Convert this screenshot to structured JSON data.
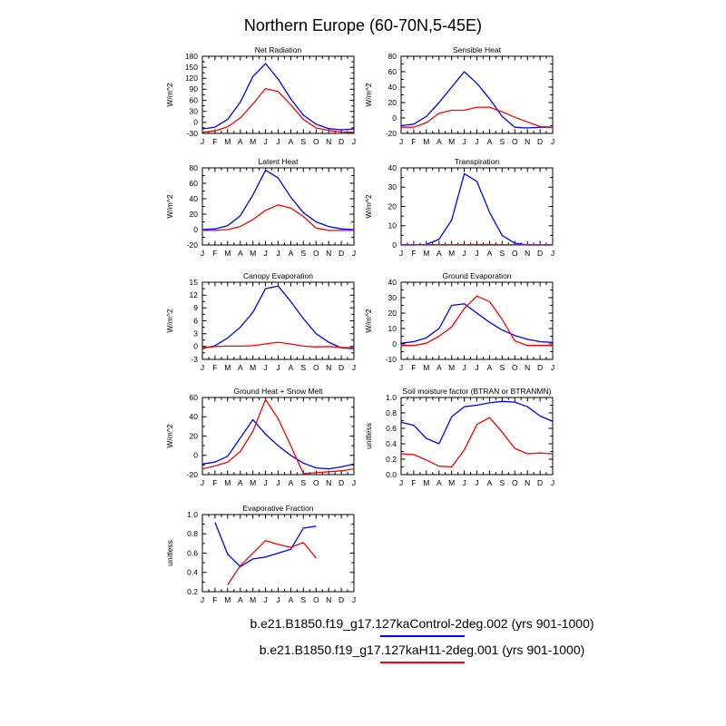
{
  "figure_title": "Northern Europe (60-70N,5-45E)",
  "months": [
    "J",
    "F",
    "M",
    "A",
    "M",
    "J",
    "J",
    "A",
    "S",
    "O",
    "N",
    "D",
    "J"
  ],
  "colors": {
    "control": "#0000ff",
    "h11": "#ff0000",
    "axis": "#000000"
  },
  "legend": [
    {
      "label": "b.e21.B1850.f19_g17.127kaControl-2deg.002 (yrs 901-1000)",
      "color": "#0000ff",
      "series": "control"
    },
    {
      "label": "b.e21.B1850.f19_g17.127kaH11-2deg.001 (yrs 901-1000)",
      "color": "#ff0000",
      "series": "h11"
    }
  ],
  "chart_data": [
    {
      "type": "line",
      "title": "Net Radiation",
      "ylabel": "W/m^2",
      "ylim": [
        -30,
        180
      ],
      "ystep": 30,
      "ydecimals": 0,
      "grid": false,
      "series": [
        {
          "name": "control",
          "color": "#0000ff",
          "values": [
            -18,
            -13,
            8,
            55,
            125,
            160,
            118,
            64,
            20,
            -5,
            -17,
            -20,
            -18
          ]
        },
        {
          "name": "h11",
          "color": "#ff0000",
          "values": [
            -27,
            -23,
            -12,
            12,
            50,
            92,
            84,
            48,
            8,
            -15,
            -22,
            -26,
            -27
          ]
        }
      ]
    },
    {
      "type": "line",
      "title": "Sensible Heat",
      "ylabel": "W/m^2",
      "ylim": [
        -20,
        80
      ],
      "ystep": 20,
      "ydecimals": 0,
      "grid": false,
      "series": [
        {
          "name": "control",
          "color": "#0000ff",
          "values": [
            -10,
            -8,
            2,
            20,
            40,
            60,
            45,
            25,
            2,
            -12,
            -13,
            -12,
            -12
          ]
        },
        {
          "name": "h11",
          "color": "#ff0000",
          "values": [
            -12,
            -12,
            -6,
            6,
            10,
            10,
            14,
            14,
            8,
            1,
            -5,
            -11,
            -12
          ]
        }
      ]
    },
    {
      "type": "line",
      "title": "Latent Heat",
      "ylabel": "W/m^2",
      "ylim": [
        -20,
        80
      ],
      "ystep": 20,
      "ydecimals": 0,
      "grid": false,
      "series": [
        {
          "name": "control",
          "color": "#0000ff",
          "values": [
            0,
            1,
            5,
            18,
            45,
            77,
            67,
            42,
            22,
            10,
            4,
            1,
            0
          ]
        },
        {
          "name": "h11",
          "color": "#ff0000",
          "values": [
            -1,
            -1,
            0,
            4,
            13,
            25,
            32,
            28,
            17,
            2,
            -1,
            -1,
            -1
          ]
        }
      ]
    },
    {
      "type": "line",
      "title": "Transpiration",
      "ylabel": "W/m^2",
      "ylim": [
        0,
        40
      ],
      "ystep": 10,
      "ydecimals": 0,
      "grid": false,
      "series": [
        {
          "name": "control",
          "color": "#0000ff",
          "values": [
            0,
            0,
            0.3,
            3,
            13,
            37,
            33,
            17,
            5,
            1,
            0,
            0,
            0
          ]
        },
        {
          "name": "h11",
          "color": "#ff0000",
          "values": [
            0.2,
            0.2,
            0.2,
            0.2,
            0.2,
            0.2,
            0.3,
            0.3,
            0.2,
            0.2,
            0.2,
            0.2,
            0.2
          ]
        }
      ]
    },
    {
      "type": "line",
      "title": "Canopy Evaporation",
      "ylabel": "W/m^2",
      "ylim": [
        -3,
        15
      ],
      "ystep": 3,
      "ydecimals": 0,
      "grid": false,
      "series": [
        {
          "name": "control",
          "color": "#0000ff",
          "values": [
            -0.5,
            0.2,
            2,
            4.5,
            8,
            13.5,
            14.1,
            10.5,
            6.5,
            3,
            1,
            -0.3,
            -0.5
          ]
        },
        {
          "name": "h11",
          "color": "#ff0000",
          "values": [
            -0.3,
            0,
            0.1,
            0.1,
            0.2,
            0.6,
            1,
            0.6,
            0.1,
            -0.1,
            0,
            -0.2,
            -0.3
          ]
        }
      ]
    },
    {
      "type": "line",
      "title": "Ground Evaporation",
      "ylabel": "W/m^2",
      "ylim": [
        -10,
        40
      ],
      "ystep": 10,
      "ydecimals": 0,
      "grid": false,
      "series": [
        {
          "name": "control",
          "color": "#0000ff",
          "values": [
            0.5,
            1.5,
            4,
            10,
            25,
            26,
            20,
            14,
            9,
            5.5,
            3,
            1.5,
            1
          ]
        },
        {
          "name": "h11",
          "color": "#ff0000",
          "values": [
            -1,
            -1,
            0.5,
            5,
            11,
            23,
            31,
            27.5,
            16,
            2,
            -1,
            -1,
            -1
          ]
        }
      ]
    },
    {
      "type": "line",
      "title": "Ground Heat + Snow Melt",
      "ylabel": "W/m^2",
      "ylim": [
        -20,
        60
      ],
      "ystep": 20,
      "ydecimals": 0,
      "grid": false,
      "series": [
        {
          "name": "control",
          "color": "#0000ff",
          "values": [
            -9,
            -7,
            -1,
            18,
            37,
            22,
            10,
            0,
            -8,
            -13,
            -14,
            -12,
            -9
          ]
        },
        {
          "name": "h11",
          "color": "#ff0000",
          "values": [
            -14,
            -11,
            -7,
            4,
            25,
            58,
            38,
            10,
            -19,
            -18,
            -17,
            -16,
            -14
          ]
        }
      ]
    },
    {
      "type": "line",
      "title": "Soil moisture factor (BTRAN or BTRANMN)",
      "ylabel": "unitless",
      "ylim": [
        0,
        1.0
      ],
      "ystep": 0.2,
      "ydecimals": 1,
      "grid": false,
      "series": [
        {
          "name": "control",
          "color": "#0000ff",
          "values": [
            0.68,
            0.64,
            0.47,
            0.4,
            0.75,
            0.88,
            0.9,
            0.93,
            0.95,
            0.94,
            0.88,
            0.76,
            0.69
          ]
        },
        {
          "name": "h11",
          "color": "#ff0000",
          "values": [
            0.27,
            0.26,
            0.19,
            0.11,
            0.1,
            0.32,
            0.65,
            0.74,
            0.55,
            0.34,
            0.27,
            0.28,
            0.27
          ]
        }
      ]
    },
    {
      "type": "line",
      "title": "Evaporative Fraction",
      "ylabel": "unitless",
      "ylim": [
        0.2,
        1.0
      ],
      "ystep": 0.2,
      "ydecimals": 1,
      "grid": false,
      "series": [
        {
          "name": "control",
          "color": "#0000ff",
          "values": [
            null,
            0.92,
            0.59,
            0.46,
            0.54,
            0.56,
            0.6,
            0.64,
            0.86,
            0.88,
            null,
            null,
            null
          ]
        },
        {
          "name": "h11",
          "color": "#ff0000",
          "values": [
            null,
            null,
            0.27,
            0.47,
            0.6,
            0.73,
            0.69,
            0.66,
            0.71,
            0.55,
            null,
            null,
            null
          ]
        }
      ]
    }
  ]
}
